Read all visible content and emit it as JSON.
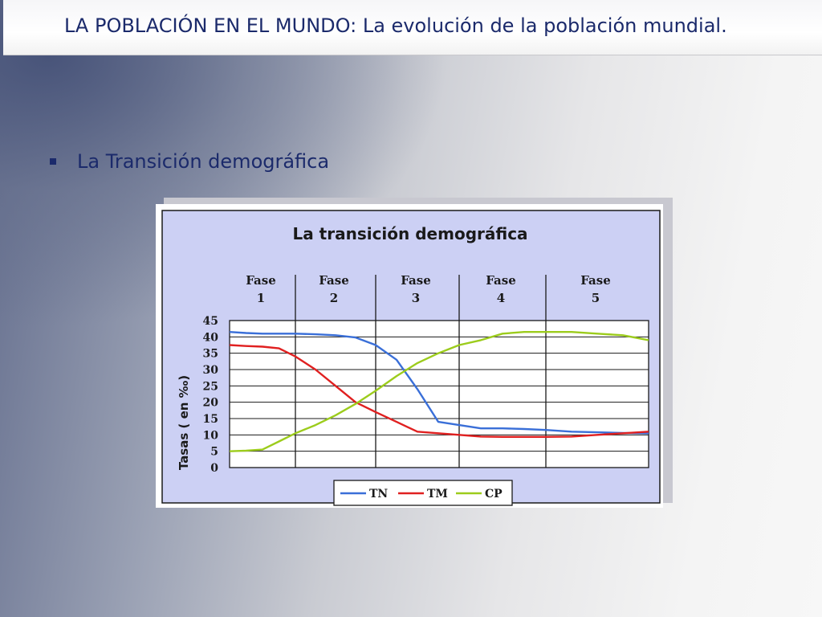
{
  "slide": {
    "title": "LA POBLACIÓN EN EL MUNDO: La evolución de la población mundial.",
    "bullet": "La Transición demográfica"
  },
  "colors": {
    "title_text": "#1b2a6b",
    "chart_bg": "#ccd0f4",
    "TN": "#3a6fd8",
    "TM": "#e02020",
    "CP": "#9ccc1c"
  },
  "chart_data": {
    "type": "line",
    "title": "La transición demográfica",
    "ylabel": "Tasas ( en ‰)",
    "ylim": [
      0,
      45
    ],
    "yticks": [
      45,
      40,
      35,
      30,
      25,
      20,
      15,
      10,
      5,
      0
    ],
    "phases": [
      {
        "line1": "Fase",
        "line2": "1"
      },
      {
        "line1": "Fase",
        "line2": "2"
      },
      {
        "line1": "Fase",
        "line2": "3"
      },
      {
        "line1": "Fase",
        "line2": "4"
      },
      {
        "line1": "Fase",
        "line2": "5"
      }
    ],
    "grid": true,
    "legend_position": "bottom",
    "x": [
      0,
      0.25,
      0.5,
      0.75,
      1,
      1.25,
      1.5,
      1.75,
      2,
      2.25,
      2.5,
      2.75,
      3,
      3.25,
      3.5,
      3.75,
      4,
      4.25,
      4.5,
      4.75,
      5
    ],
    "series": [
      {
        "name": "TN",
        "values": [
          41.5,
          41.2,
          41,
          41,
          41,
          40.8,
          40.5,
          39.8,
          37.5,
          33,
          24,
          14,
          13,
          12,
          12,
          11.8,
          11.5,
          11,
          10.8,
          10.6,
          10.5
        ]
      },
      {
        "name": "TM",
        "values": [
          37.5,
          37.2,
          37,
          36.5,
          34,
          30,
          25,
          20,
          17,
          14,
          11,
          10.5,
          10,
          9.5,
          9.4,
          9.4,
          9.4,
          9.5,
          10,
          10.5,
          11
        ]
      },
      {
        "name": "CP",
        "values": [
          5,
          5.2,
          5.5,
          8,
          10.5,
          13,
          16,
          19.5,
          23.5,
          28,
          32,
          35,
          37.5,
          39,
          41,
          41.5,
          41.5,
          41.5,
          41,
          40.5,
          39
        ]
      }
    ]
  }
}
